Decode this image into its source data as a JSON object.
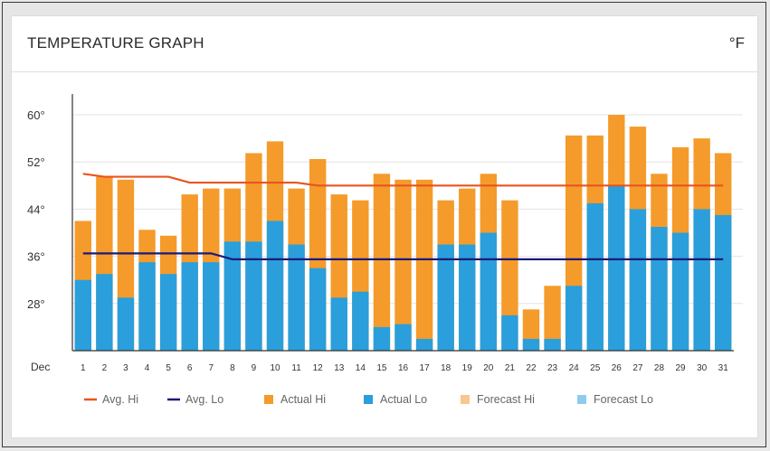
{
  "header": {
    "title": "TEMPERATURE GRAPH",
    "unit": "°F"
  },
  "colors": {
    "actual_hi": "#f49b2b",
    "actual_lo": "#2a9fdb",
    "avg_hi": "#e8541f",
    "avg_lo": "#1b1a7a",
    "forecast_hi": "#f9c690",
    "forecast_lo": "#8fcbee",
    "grid": "#e3e3e3",
    "axis": "#333333"
  },
  "chart_data": {
    "type": "bar",
    "title": "TEMPERATURE GRAPH",
    "month_label": "Dec",
    "ylim": [
      20,
      62
    ],
    "yticks": [
      28,
      36,
      44,
      52,
      60
    ],
    "ytick_suffix": "°",
    "grid": true,
    "legend_position": "bottom",
    "categories": [
      "1",
      "2",
      "3",
      "4",
      "5",
      "6",
      "7",
      "8",
      "9",
      "10",
      "11",
      "12",
      "13",
      "14",
      "15",
      "16",
      "17",
      "18",
      "19",
      "20",
      "21",
      "22",
      "23",
      "24",
      "25",
      "26",
      "27",
      "28",
      "29",
      "30",
      "31"
    ],
    "series": [
      {
        "name": "Actual Hi",
        "kind": "bar",
        "values": [
          42,
          49.5,
          49,
          40.5,
          39.5,
          46.5,
          47.5,
          47.5,
          53.5,
          55.5,
          47.5,
          52.5,
          46.5,
          45.5,
          50,
          49,
          49,
          45.5,
          47.5,
          50,
          45.5,
          27,
          31,
          56.5,
          56.5,
          60,
          58,
          50,
          54.5,
          56,
          53.5
        ]
      },
      {
        "name": "Actual Lo",
        "kind": "bar",
        "values": [
          32,
          33,
          29,
          35,
          33,
          35,
          35,
          38.5,
          38.5,
          42,
          38,
          34,
          29,
          30,
          24,
          24.5,
          22,
          38,
          38,
          40,
          26,
          22,
          22,
          31,
          45,
          48,
          44,
          41,
          40,
          44,
          43
        ]
      },
      {
        "name": "Avg. Hi",
        "kind": "line",
        "values": [
          50,
          49.5,
          49.5,
          49.5,
          49.5,
          48.5,
          48.5,
          48.5,
          48.5,
          48.5,
          48.5,
          48,
          48,
          48,
          48,
          48,
          48,
          48,
          48,
          48,
          48,
          48,
          48,
          48,
          48,
          48,
          48,
          48,
          48,
          48,
          48
        ]
      },
      {
        "name": "Avg. Lo",
        "kind": "line",
        "values": [
          36.5,
          36.5,
          36.5,
          36.5,
          36.5,
          36.5,
          36.5,
          35.5,
          35.5,
          35.5,
          35.5,
          35.5,
          35.5,
          35.5,
          35.5,
          35.5,
          35.5,
          35.5,
          35.5,
          35.5,
          35.5,
          35.5,
          35.5,
          35.5,
          35.5,
          35.5,
          35.5,
          35.5,
          35.5,
          35.5,
          35.5
        ]
      }
    ],
    "legend": [
      {
        "label": "Avg. Hi",
        "shape": "line",
        "color_key": "avg_hi"
      },
      {
        "label": "Avg. Lo",
        "shape": "line",
        "color_key": "avg_lo"
      },
      {
        "label": "Actual Hi",
        "shape": "square",
        "color_key": "actual_hi"
      },
      {
        "label": "Actual Lo",
        "shape": "square",
        "color_key": "actual_lo"
      },
      {
        "label": "Forecast Hi",
        "shape": "square",
        "color_key": "forecast_hi"
      },
      {
        "label": "Forecast Lo",
        "shape": "square",
        "color_key": "forecast_lo"
      }
    ]
  }
}
